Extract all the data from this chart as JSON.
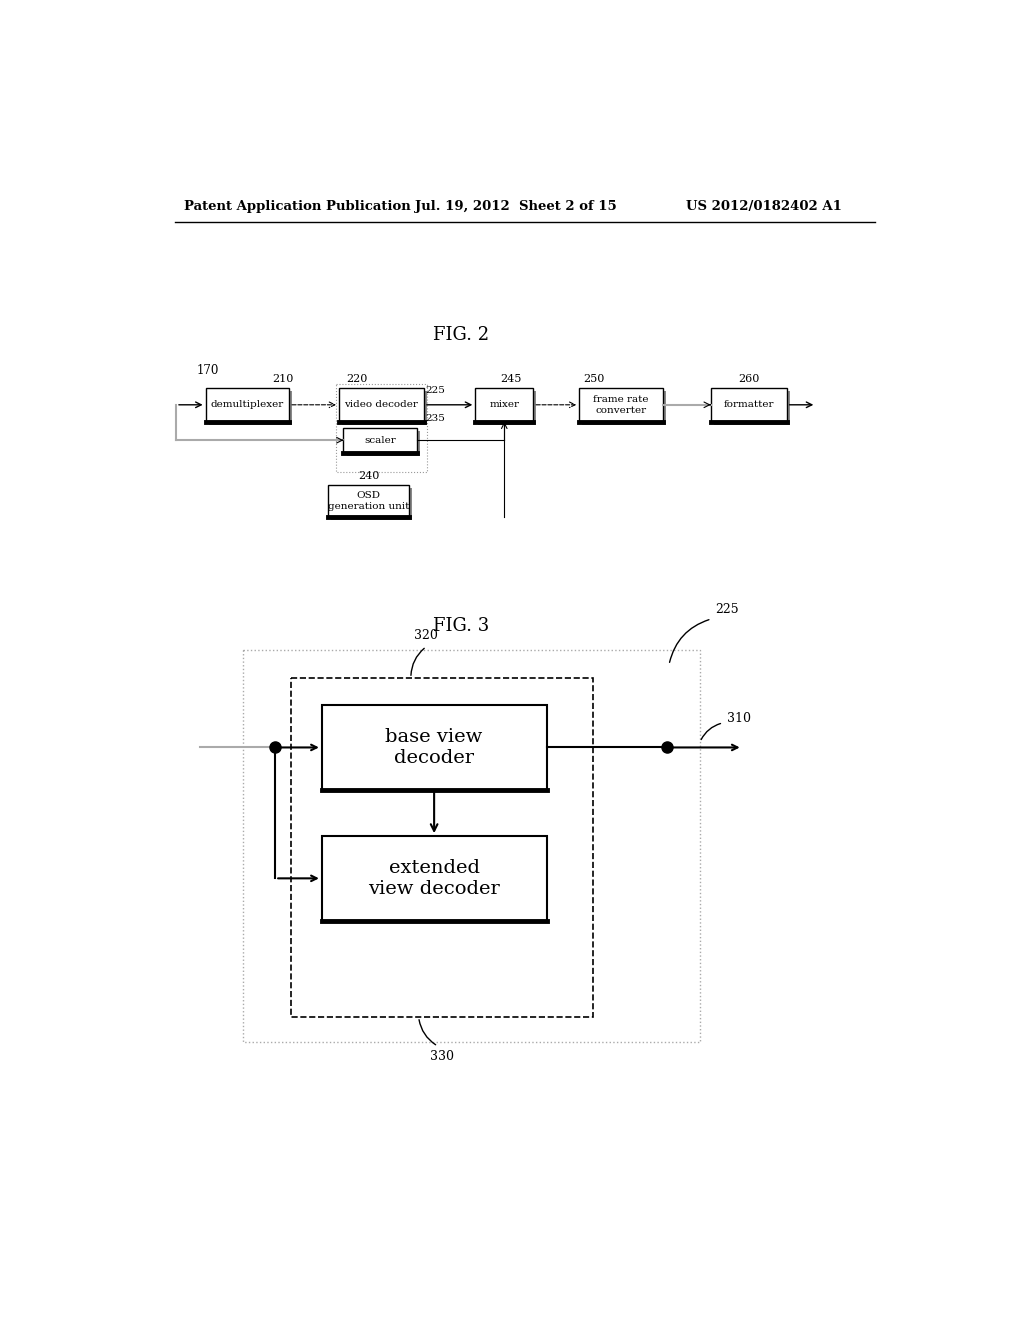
{
  "header_left": "Patent Application Publication",
  "header_mid": "Jul. 19, 2012  Sheet 2 of 15",
  "header_right": "US 2012/0182402 A1",
  "fig2_label": "FIG. 2",
  "fig3_label": "FIG. 3",
  "label_170": "170",
  "label_210": "210",
  "label_220": "220",
  "label_225": "225",
  "label_235": "235",
  "label_240": "240",
  "label_245": "245",
  "label_250": "250",
  "label_260": "260",
  "label_310": "310",
  "label_320": "320",
  "label_330": "330",
  "box_demux": "demultiplexer",
  "box_vdec": "video decoder",
  "box_scaler": "scaler",
  "box_mixer": "mixer",
  "box_frc": "frame rate\nconverter",
  "box_fmt": "formatter",
  "box_osd": "OSD\ngeneration unit",
  "box_bvd": "base view\ndecoder",
  "box_evd": "extended\nview decoder",
  "bg_color": "#ffffff",
  "box_color": "#ffffff",
  "box_edge": "#000000",
  "text_color": "#000000",
  "line_color": "#000000",
  "gray_line": "#aaaaaa",
  "shadow_color": "#888888"
}
